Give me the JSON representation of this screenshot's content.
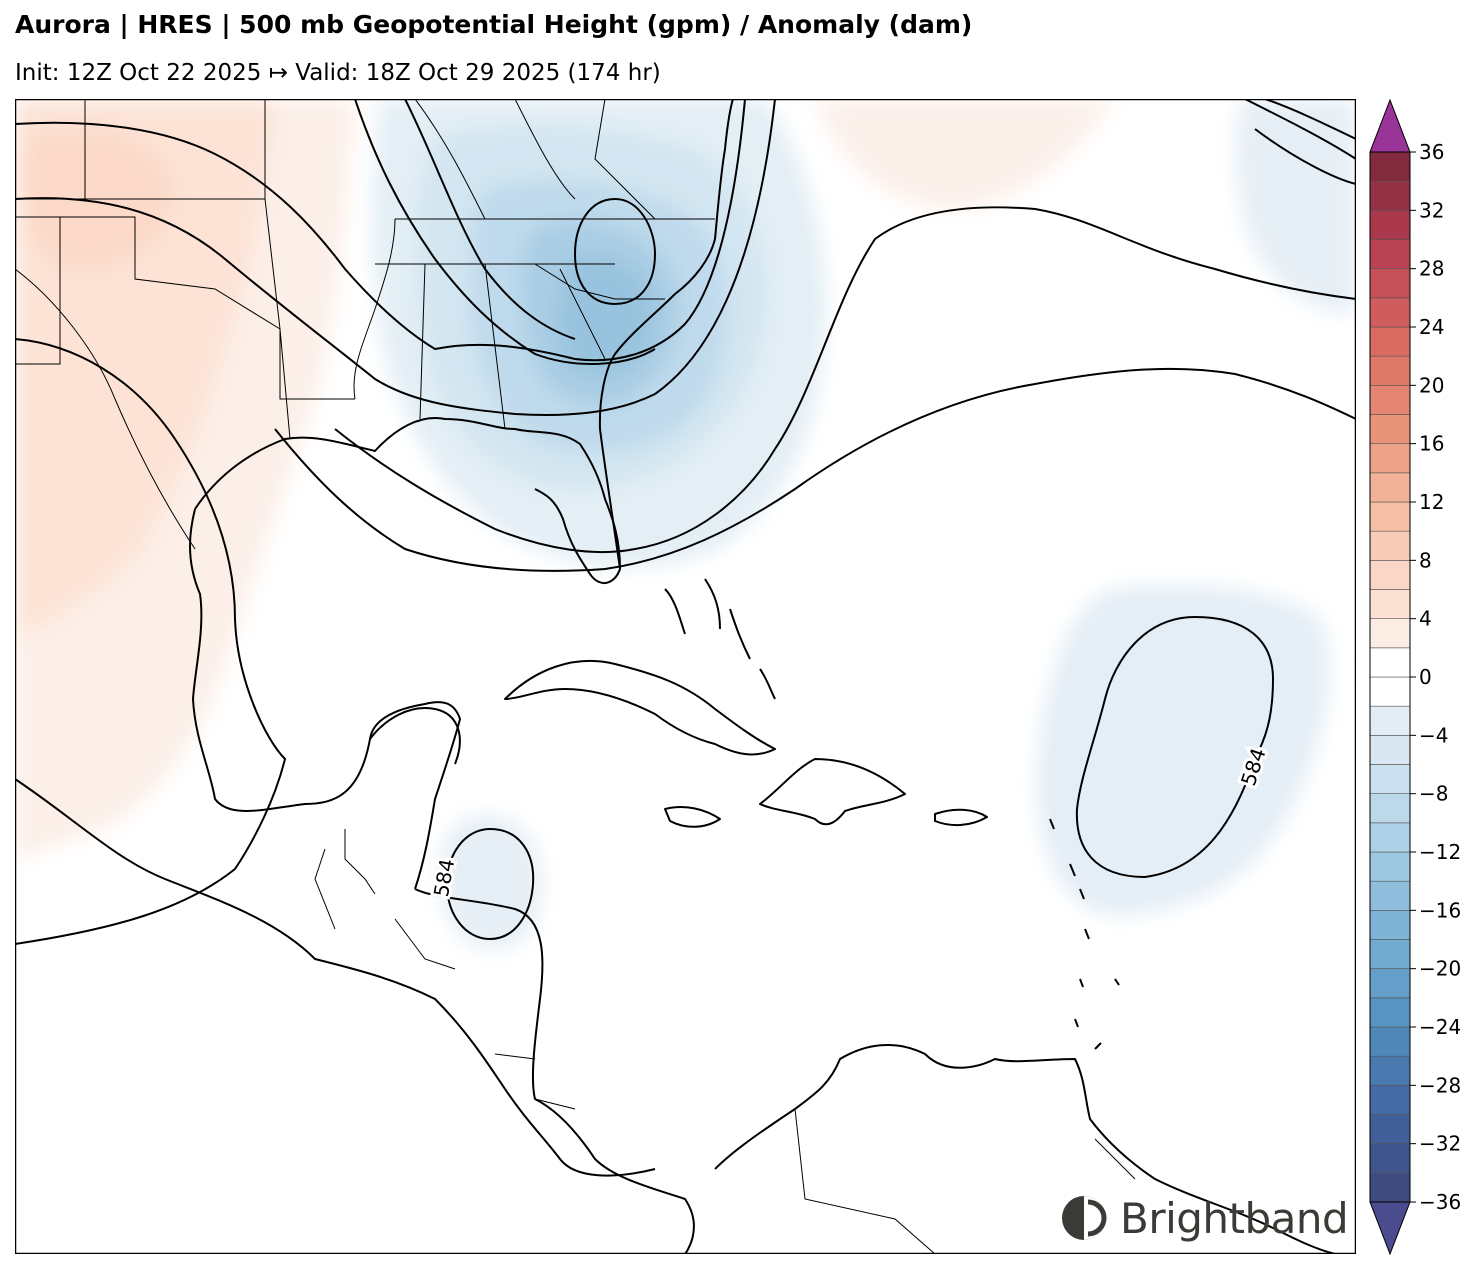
{
  "header": {
    "title": "Aurora | HRES | 500 mb Geopotential Height (gpm) / Anomaly (dam)",
    "subtitle": "Init: 12Z Oct 22 2025 ↦ Valid: 18Z Oct 29 2025 (174 hr)"
  },
  "map": {
    "contour_labels": [
      "584",
      "584"
    ],
    "colors": {
      "coast": "#000000",
      "contour": "#000000",
      "neg_light": "#e3eef5",
      "neg_mid": "#c3dced",
      "neg_dark": "#93c1dc",
      "pos_light": "#fbece4",
      "pos_mid": "#fcdccd"
    }
  },
  "colorbar": {
    "ticks": [
      "36",
      "32",
      "28",
      "24",
      "20",
      "16",
      "12",
      "8",
      "4",
      "0",
      "−4",
      "−8",
      "−12",
      "−16",
      "−20",
      "−24",
      "−28",
      "−32",
      "−36"
    ],
    "min": -36,
    "max": 36,
    "step": 2,
    "extend_low_color": "#4b4b8f",
    "extend_high_color": "#993499"
  },
  "branding": {
    "name": "Brightband"
  }
}
